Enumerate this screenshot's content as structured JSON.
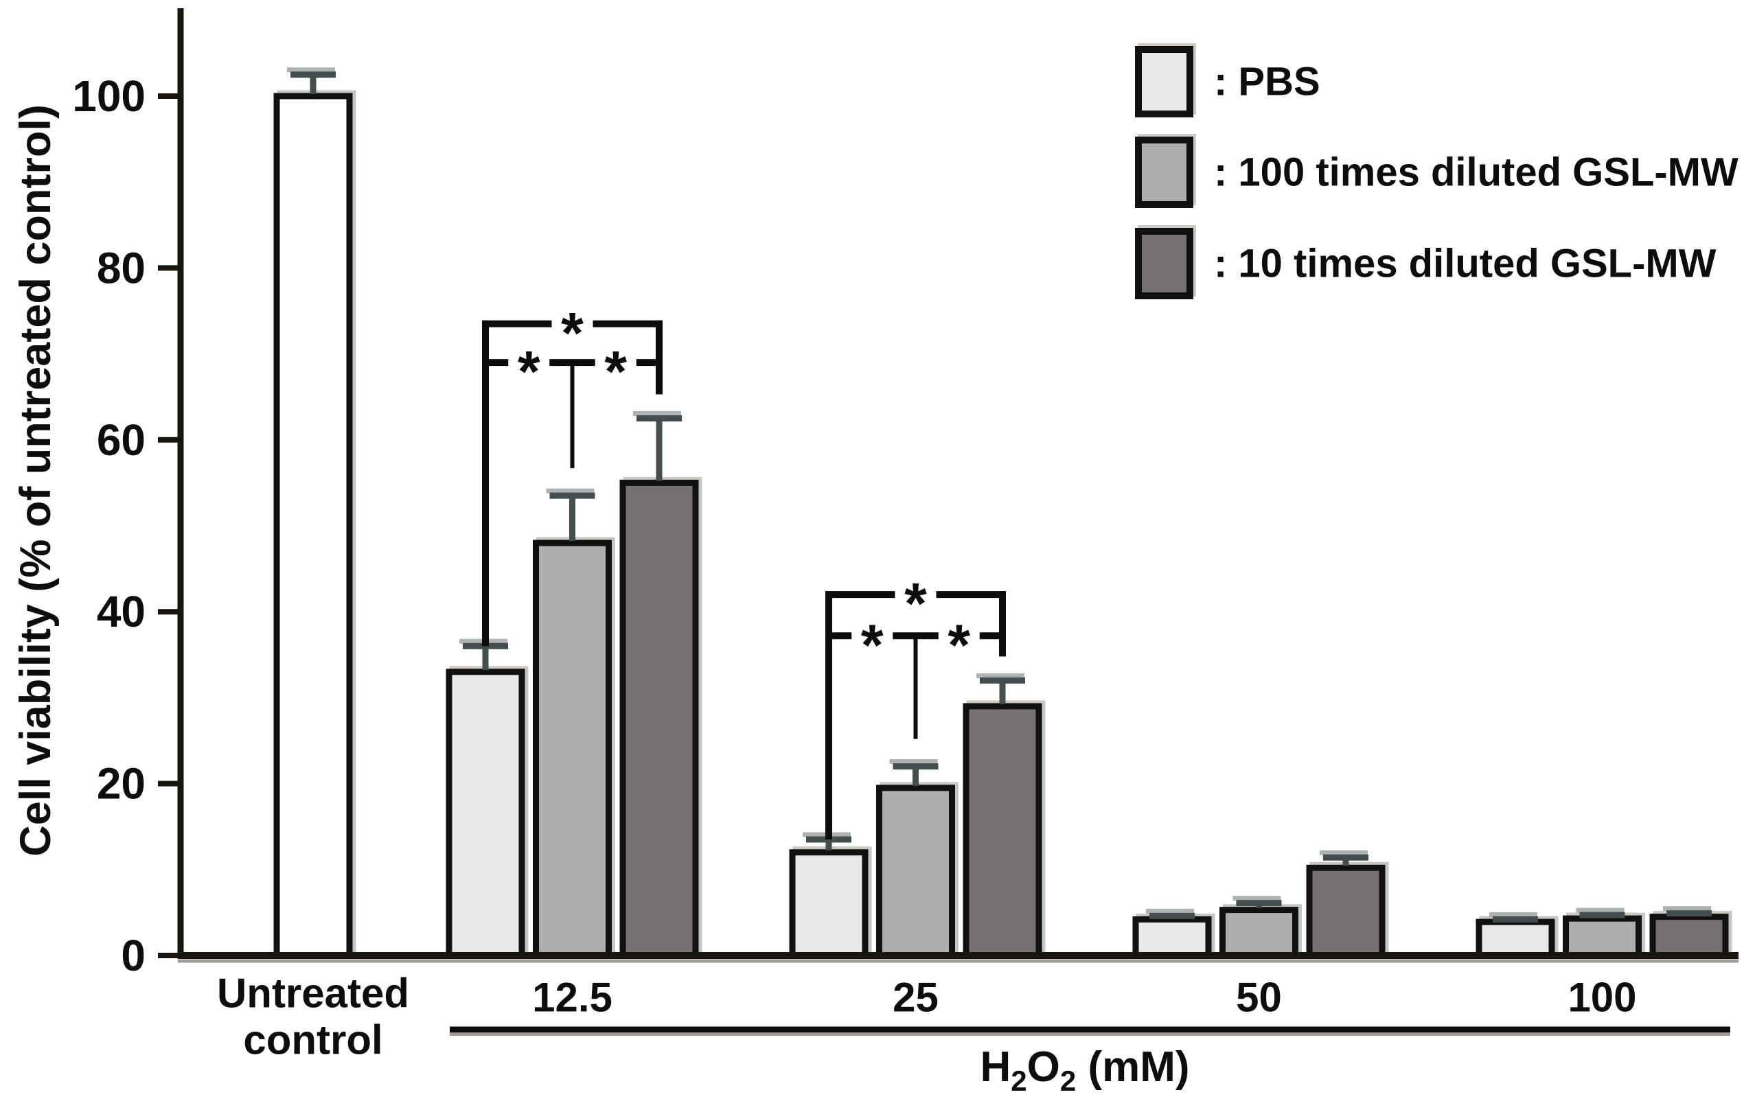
{
  "chart_data": {
    "type": "bar",
    "title": "",
    "ylabel": "Cell viability (% of untreated control)",
    "xlabel": "H2O2 (mM)",
    "xlabel_formula": [
      {
        "t": "H",
        "sub": false
      },
      {
        "t": "2",
        "sub": true
      },
      {
        "t": "O",
        "sub": false
      },
      {
        "t": "2",
        "sub": true
      },
      {
        "t": " (mM)",
        "sub": false
      }
    ],
    "ylim": [
      0,
      110
    ],
    "yticks": [
      0,
      20,
      40,
      60,
      80,
      100
    ],
    "grid": false,
    "legend_position": "top-right",
    "control": {
      "label_lines": [
        "Untreated",
        "control"
      ],
      "value": 100,
      "error": 2.5,
      "fill": "#ffffff"
    },
    "categories": [
      "12.5",
      "25",
      "50",
      "100"
    ],
    "series": [
      {
        "name": "PBS",
        "legend_label": ": PBS",
        "fill": "#e8e8e6",
        "values": [
          33,
          12,
          4.2,
          3.9
        ],
        "errors": [
          3,
          1.5,
          0.4,
          0.3
        ]
      },
      {
        "name": "100 times diluted GSL-MW",
        "legend_label": ": 100 times diluted GSL-MW",
        "fill": "#aeaeae",
        "values": [
          48,
          19.5,
          5.3,
          4.3
        ],
        "errors": [
          5.5,
          2.5,
          0.8,
          0.4
        ]
      },
      {
        "name": "10 times diluted GSL-MW",
        "legend_label": ": 10 times diluted GSL-MW",
        "fill": "#767070",
        "values": [
          55,
          29,
          10.2,
          4.5
        ],
        "errors": [
          7.5,
          3,
          1.2,
          0.4
        ]
      }
    ],
    "significance": {
      "symbol": "*",
      "brackets": [
        {
          "group": "12.5",
          "outer_level": 73.5,
          "inner_level": 69,
          "comparisons": [
            "PBS vs 10 times diluted GSL-MW",
            "PBS vs 100 times diluted GSL-MW",
            "100 times vs 10 times diluted GSL-MW"
          ]
        },
        {
          "group": "25",
          "outer_level": 42,
          "inner_level": 37.2,
          "comparisons": [
            "PBS vs 10 times diluted GSL-MW",
            "PBS vs 100 times diluted GSL-MW",
            "100 times vs 10 times diluted GSL-MW"
          ]
        }
      ]
    },
    "colors": {
      "bar_stroke": "#111111",
      "axis": "#18140f",
      "axis_shadow": "#a29c96",
      "error_bar": "#454e4e",
      "error_bar_highlight": "#aeb2b2",
      "bracket": "#0c0c0c",
      "text": "#0d0d0d",
      "background": "#ffffff"
    }
  }
}
